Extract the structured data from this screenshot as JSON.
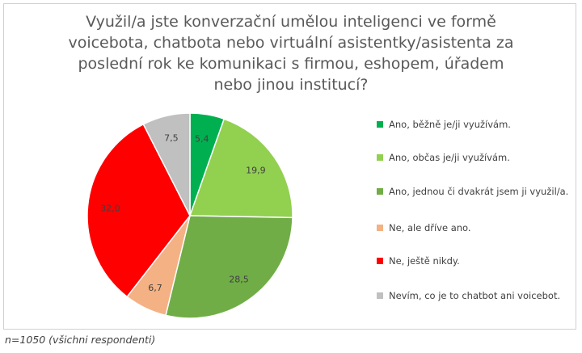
{
  "chart_data": {
    "type": "pie",
    "title": "Využil/a jste konverzační umělou inteligenci ve formě voicebota, chatbota nebo virtuální asistentky/asistenta za poslední rok ke komunikaci s firmou, eshopem, úřadem nebo jinou institucí?",
    "slices": [
      {
        "label": "Ano, běžně je/ji využívám.",
        "value": 5.4,
        "value_label": "5,4",
        "color": "#00b050"
      },
      {
        "label": "Ano, občas je/ji využívám.",
        "value": 19.9,
        "value_label": "19,9",
        "color": "#92d050"
      },
      {
        "label": "Ano, jednou či dvakrát jsem ji využil/a.",
        "value": 28.5,
        "value_label": "28,5",
        "color": "#70ad47"
      },
      {
        "label": "Ne, ale dříve ano.",
        "value": 6.7,
        "value_label": "6,7",
        "color": "#f4b183"
      },
      {
        "label": "Ne, ještě nikdy.",
        "value": 32.0,
        "value_label": "32,0",
        "color": "#ff0000"
      },
      {
        "label": "Nevím, co je to chatbot ani voicebot.",
        "value": 7.5,
        "value_label": "7,5",
        "color": "#c0c0c0"
      }
    ],
    "legend_position": "right"
  },
  "footnote": "n=1050 (všichni respondenti)"
}
